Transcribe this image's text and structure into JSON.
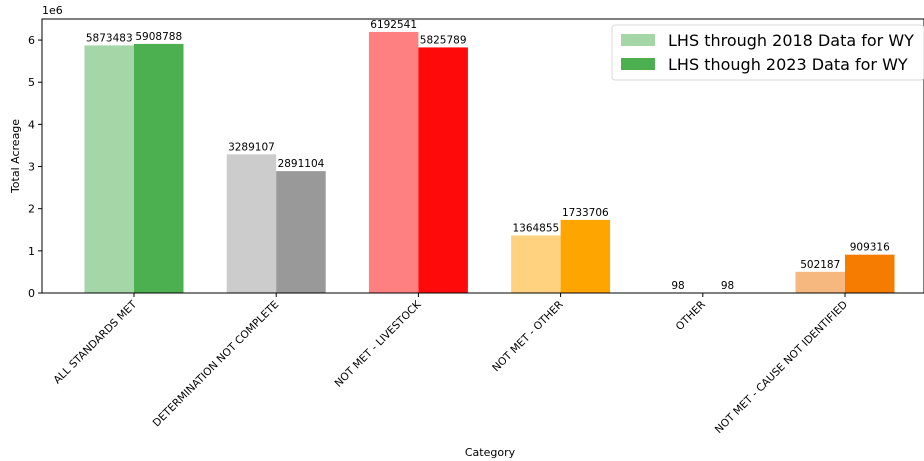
{
  "chart_data": {
    "type": "bar",
    "title": "",
    "xlabel": "Category",
    "ylabel": "Total Acreage",
    "y_multiplier_label": "1e6",
    "y_scale": 1000000,
    "ylim": [
      0,
      6500000
    ],
    "yticks": [
      0,
      1,
      2,
      3,
      4,
      5,
      6
    ],
    "grid": false,
    "legend_position": "top-right",
    "categories": [
      "ALL STANDARDS MET",
      "DETERMINATION NOT COMPLETE",
      "NOT MET - LIVESTOCK",
      "NOT MET - OTHER",
      "OTHER",
      "NOT MET - CAUSE NOT IDENTIFIED"
    ],
    "series": [
      {
        "name": "LHS through 2018 Data for WY",
        "values": [
          5873483,
          3289107,
          6192541,
          1364855,
          98,
          502187
        ],
        "colors": [
          "#a5d6a7",
          "#cccccc",
          "#ff8080",
          "#ffd280",
          "#ffd280",
          "#f7b87f"
        ],
        "legend_color": "#a5d6a7"
      },
      {
        "name": "LHS though 2023 Data for WY",
        "values": [
          5908788,
          2891104,
          5825789,
          1733706,
          98,
          909316
        ],
        "colors": [
          "#4caf50",
          "#999999",
          "#ff0a0a",
          "#ffa500",
          "#ffa500",
          "#f57c00"
        ],
        "legend_color": "#4caf50"
      }
    ]
  }
}
